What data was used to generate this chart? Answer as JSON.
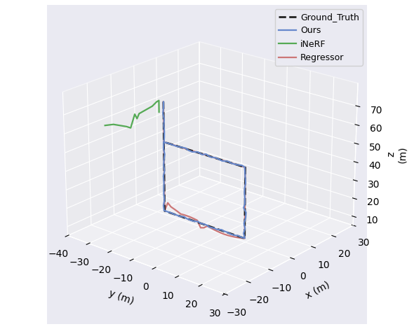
{
  "xlabel": "y (m)",
  "ylabel": "x (m)",
  "zlabel": "z\n(m)",
  "ylim": [
    -30,
    30
  ],
  "xlim": [
    -40,
    30
  ],
  "zlim": [
    5,
    82
  ],
  "xticks": [
    -40,
    -30,
    -20,
    -10,
    0,
    10,
    20,
    30
  ],
  "yticks": [
    -30,
    -20,
    -10,
    0,
    10,
    20,
    30
  ],
  "zticks": [
    10,
    20,
    30,
    40,
    50,
    60,
    70
  ],
  "elev": 22,
  "azim": -50,
  "gt_color": "#222222",
  "ours_color": "#6688CC",
  "inerf_color": "#55AA55",
  "reg_color": "#CC7777",
  "legend_loc": "upper right",
  "figsize": [
    5.9,
    4.7
  ],
  "dpi": 100
}
